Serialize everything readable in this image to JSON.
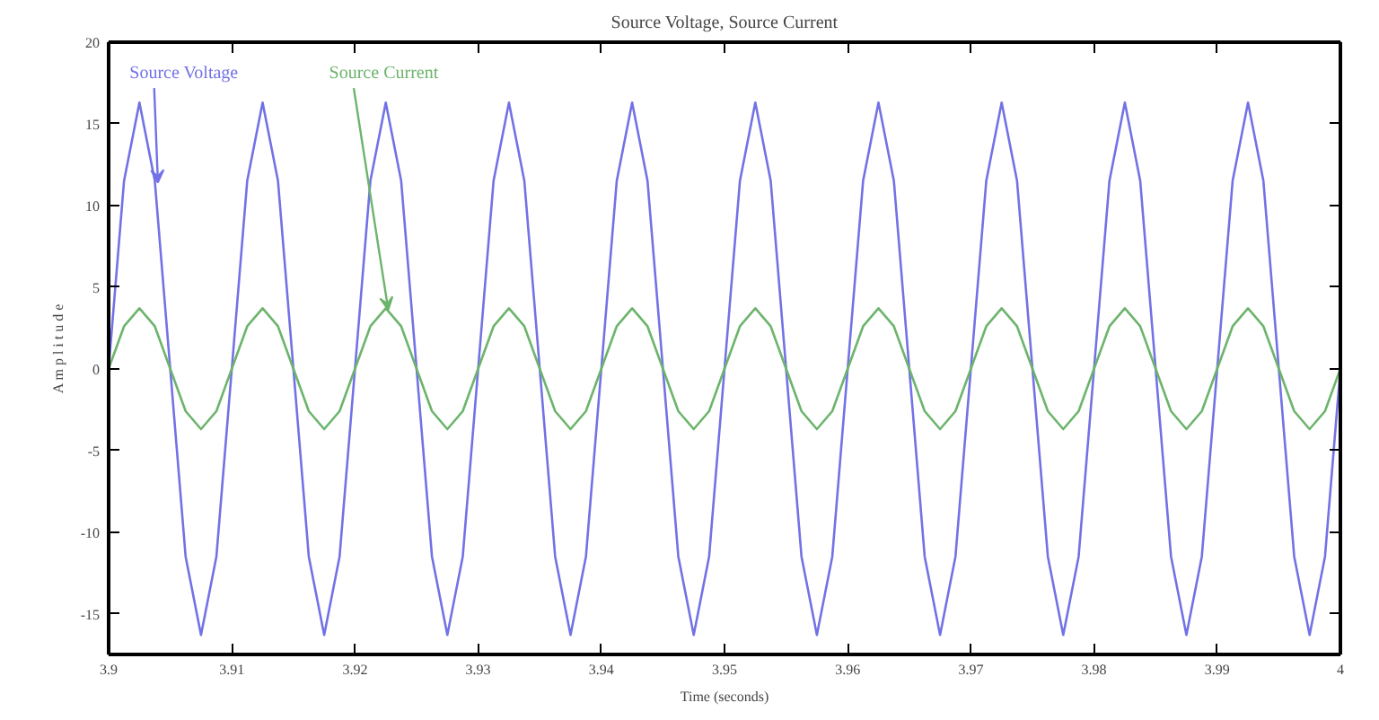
{
  "chart_data": {
    "type": "line",
    "title": "Source Voltage, Source Current",
    "xlabel": "Time (seconds)",
    "ylabel": "A m p l i t u d e",
    "x": [
      3.9,
      3.90125,
      3.9025,
      3.90375,
      3.905,
      3.90625,
      3.9075,
      3.90875,
      3.91,
      3.91125,
      3.9125,
      3.91375,
      3.915,
      3.91625,
      3.9175,
      3.91875,
      3.92,
      3.92125,
      3.9225,
      3.92375,
      3.925,
      3.92625,
      3.9275,
      3.92875,
      3.93,
      3.93125,
      3.9325,
      3.93375,
      3.935,
      3.93625,
      3.9375,
      3.93875,
      3.94,
      3.94125,
      3.9425,
      3.94375,
      3.945,
      3.94625,
      3.9475,
      3.94875,
      3.95,
      3.95125,
      3.9525,
      3.95375,
      3.955,
      3.95625,
      3.9575,
      3.95875,
      3.96,
      3.96125,
      3.9625,
      3.96375,
      3.965,
      3.96625,
      3.9675,
      3.96875,
      3.97,
      3.97125,
      3.9725,
      3.97375,
      3.975,
      3.97625,
      3.9775,
      3.97875,
      3.98,
      3.98125,
      3.9825,
      3.98375,
      3.985,
      3.98625,
      3.9875,
      3.98875,
      3.99,
      3.99125,
      3.9925,
      3.99375,
      3.995,
      3.99625,
      3.9975,
      3.99875,
      4.0
    ],
    "series": [
      {
        "color": "#7272e6",
        "values": [
          0,
          11.5,
          16.3,
          11.5,
          0,
          -11.5,
          -16.3,
          -11.5,
          0,
          11.5,
          16.3,
          11.5,
          0,
          -11.5,
          -16.3,
          -11.5,
          0,
          11.5,
          16.3,
          11.5,
          0,
          -11.5,
          -16.3,
          -11.5,
          0,
          11.5,
          16.3,
          11.5,
          0,
          -11.5,
          -16.3,
          -11.5,
          0,
          11.5,
          16.3,
          11.5,
          0,
          -11.5,
          -16.3,
          -11.5,
          0,
          11.5,
          16.3,
          11.5,
          0,
          -11.5,
          -16.3,
          -11.5,
          0,
          11.5,
          16.3,
          11.5,
          0,
          -11.5,
          -16.3,
          -11.5,
          0,
          11.5,
          16.3,
          11.5,
          0,
          -11.5,
          -16.3,
          -11.5,
          0,
          11.5,
          16.3,
          11.5,
          0,
          -11.5,
          -16.3,
          -11.5,
          0,
          11.5,
          16.3,
          11.5,
          0,
          -11.5,
          -16.3,
          -11.5,
          0
        ]
      },
      {
        "color": "#6cb46c",
        "values": [
          0,
          2.6,
          3.7,
          2.6,
          0,
          -2.6,
          -3.7,
          -2.6,
          0,
          2.6,
          3.7,
          2.6,
          0,
          -2.6,
          -3.7,
          -2.6,
          0,
          2.6,
          3.7,
          2.6,
          0,
          -2.6,
          -3.7,
          -2.6,
          0,
          2.6,
          3.7,
          2.6,
          0,
          -2.6,
          -3.7,
          -2.6,
          0,
          2.6,
          3.7,
          2.6,
          0,
          -2.6,
          -3.7,
          -2.6,
          0,
          2.6,
          3.7,
          2.6,
          0,
          -2.6,
          -3.7,
          -2.6,
          0,
          2.6,
          3.7,
          2.6,
          0,
          -2.6,
          -3.7,
          -2.6,
          0,
          2.6,
          3.7,
          2.6,
          0,
          -2.6,
          -3.7,
          -2.6,
          0,
          2.6,
          3.7,
          2.6,
          0,
          -2.6,
          -3.7,
          -2.6,
          0,
          2.6,
          3.7,
          2.6,
          0,
          -2.6,
          -3.7,
          -2.6,
          0
        ]
      }
    ],
    "annotations": [
      {
        "text": "Source Voltage",
        "x": 3.904,
        "y": 11.4
      },
      {
        "text": "Source Current",
        "x": 3.9227,
        "y": 3.6
      }
    ],
    "xlim": [
      3.9,
      4.0
    ],
    "ylim": [
      -17.5,
      20
    ],
    "xticks": [
      {
        "value": 3.9,
        "label": "3.9"
      },
      3.91,
      3.92,
      3.93,
      3.94,
      3.95,
      3.96,
      3.97,
      3.98,
      3.99,
      {
        "value": 4.0,
        "label": "4"
      }
    ],
    "yticks": [
      -15,
      -10,
      -5,
      0,
      5,
      10,
      15,
      20
    ],
    "grid": false,
    "line_style": "solid",
    "marker": "none"
  }
}
